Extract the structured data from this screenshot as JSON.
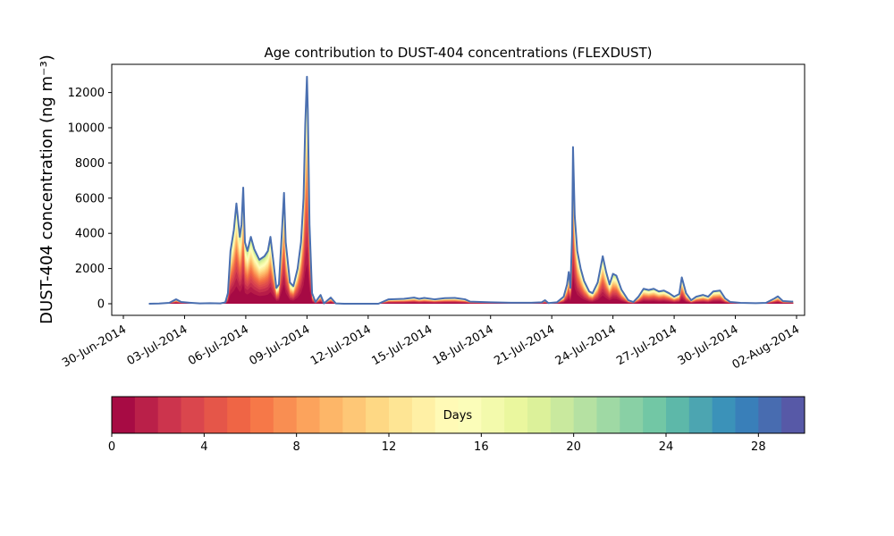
{
  "chart_data": {
    "type": "area",
    "title": "Age contribution to DUST-404 concentrations (FLEXDUST)",
    "ylabel": "DUST-404 concentration (ng m⁻³)",
    "xlabel": "",
    "ylim": [
      -700,
      13500
    ],
    "xlim": [
      "2014-06-30T00:00",
      "2014-08-02T00:00"
    ],
    "yticks": [
      0,
      2000,
      4000,
      6000,
      8000,
      10000,
      12000
    ],
    "ytick_labels": [
      "0",
      "2000",
      "4000",
      "6000",
      "8000",
      "10000",
      "12000"
    ],
    "xticks": [
      "2014-06-30",
      "2014-07-03",
      "2014-07-06",
      "2014-07-09",
      "2014-07-12",
      "2014-07-15",
      "2014-07-18",
      "2014-07-21",
      "2014-07-24",
      "2014-07-27",
      "2014-07-30",
      "2014-08-02"
    ],
    "xtick_labels": [
      "30-Jun-2014",
      "03-Jul-2014",
      "06-Jul-2014",
      "09-Jul-2014",
      "12-Jul-2014",
      "15-Jul-2014",
      "18-Jul-2014",
      "21-Jul-2014",
      "24-Jul-2014",
      "27-Jul-2014",
      "30-Jul-2014",
      "02-Aug-2014"
    ],
    "series": [
      {
        "values": [
          [
            "2014-07-01T06:00",
            0
          ],
          [
            "2014-07-01T18:00",
            10
          ],
          [
            "2014-07-02T06:00",
            50
          ],
          [
            "2014-07-02T14:00",
            250
          ],
          [
            "2014-07-02T20:00",
            100
          ],
          [
            "2014-07-03T06:00",
            60
          ],
          [
            "2014-07-03T18:00",
            20
          ],
          [
            "2014-07-04T06:00",
            30
          ],
          [
            "2014-07-04T18:00",
            20
          ],
          [
            "2014-07-05T00:00",
            80
          ],
          [
            "2014-07-05T03:00",
            600
          ],
          [
            "2014-07-05T06:00",
            3000
          ],
          [
            "2014-07-05T10:00",
            4200
          ],
          [
            "2014-07-05T13:00",
            5700
          ],
          [
            "2014-07-05T17:00",
            3800
          ],
          [
            "2014-07-05T19:00",
            4500
          ],
          [
            "2014-07-05T21:00",
            6600
          ],
          [
            "2014-07-05T23:00",
            3500
          ],
          [
            "2014-07-06T02:00",
            3000
          ],
          [
            "2014-07-06T06:00",
            3800
          ],
          [
            "2014-07-06T10:00",
            3100
          ],
          [
            "2014-07-06T16:00",
            2500
          ],
          [
            "2014-07-06T22:00",
            2700
          ],
          [
            "2014-07-07T02:00",
            3000
          ],
          [
            "2014-07-07T05:00",
            3800
          ],
          [
            "2014-07-07T08:00",
            2600
          ],
          [
            "2014-07-07T12:00",
            900
          ],
          [
            "2014-07-07T15:00",
            1100
          ],
          [
            "2014-07-07T19:00",
            4500
          ],
          [
            "2014-07-07T21:00",
            6300
          ],
          [
            "2014-07-07T23:00",
            3500
          ],
          [
            "2014-07-08T04:00",
            1200
          ],
          [
            "2014-07-08T08:00",
            1000
          ],
          [
            "2014-07-08T13:00",
            2000
          ],
          [
            "2014-07-08T17:00",
            3500
          ],
          [
            "2014-07-08T20:00",
            6000
          ],
          [
            "2014-07-08T22:00",
            10200
          ],
          [
            "2014-07-09T00:00",
            12900
          ],
          [
            "2014-07-09T01:00",
            11000
          ],
          [
            "2014-07-09T03:00",
            4500
          ],
          [
            "2014-07-09T06:00",
            600
          ],
          [
            "2014-07-09T10:00",
            100
          ],
          [
            "2014-07-09T16:00",
            500
          ],
          [
            "2014-07-09T20:00",
            20
          ],
          [
            "2014-07-10T04:00",
            350
          ],
          [
            "2014-07-10T10:00",
            20
          ],
          [
            "2014-07-10T20:00",
            0
          ],
          [
            "2014-07-11T12:00",
            0
          ],
          [
            "2014-07-12T12:00",
            0
          ],
          [
            "2014-07-13T00:00",
            250
          ],
          [
            "2014-07-13T18:00",
            280
          ],
          [
            "2014-07-14T06:00",
            350
          ],
          [
            "2014-07-14T12:00",
            280
          ],
          [
            "2014-07-14T18:00",
            330
          ],
          [
            "2014-07-15T06:00",
            250
          ],
          [
            "2014-07-15T18:00",
            320
          ],
          [
            "2014-07-16T06:00",
            330
          ],
          [
            "2014-07-16T18:00",
            250
          ],
          [
            "2014-07-17T00:00",
            120
          ],
          [
            "2014-07-18T00:00",
            80
          ],
          [
            "2014-07-19T00:00",
            60
          ],
          [
            "2014-07-20T00:00",
            60
          ],
          [
            "2014-07-20T12:00",
            80
          ],
          [
            "2014-07-20T16:00",
            200
          ],
          [
            "2014-07-20T20:00",
            40
          ],
          [
            "2014-07-21T06:00",
            80
          ],
          [
            "2014-07-21T14:00",
            400
          ],
          [
            "2014-07-21T18:00",
            1100
          ],
          [
            "2014-07-21T20:00",
            1800
          ],
          [
            "2014-07-21T22:00",
            900
          ],
          [
            "2014-07-22T00:00",
            4000
          ],
          [
            "2014-07-22T01:00",
            8900
          ],
          [
            "2014-07-22T03:00",
            5000
          ],
          [
            "2014-07-22T06:00",
            3000
          ],
          [
            "2014-07-22T10:00",
            2000
          ],
          [
            "2014-07-22T14:00",
            1300
          ],
          [
            "2014-07-22T20:00",
            700
          ],
          [
            "2014-07-23T00:00",
            600
          ],
          [
            "2014-07-23T06:00",
            1200
          ],
          [
            "2014-07-23T12:00",
            2700
          ],
          [
            "2014-07-23T16:00",
            1800
          ],
          [
            "2014-07-23T20:00",
            1100
          ],
          [
            "2014-07-24T00:00",
            1700
          ],
          [
            "2014-07-24T04:00",
            1600
          ],
          [
            "2014-07-24T10:00",
            800
          ],
          [
            "2014-07-24T18:00",
            200
          ],
          [
            "2014-07-25T00:00",
            100
          ],
          [
            "2014-07-25T06:00",
            400
          ],
          [
            "2014-07-25T12:00",
            850
          ],
          [
            "2014-07-25T18:00",
            780
          ],
          [
            "2014-07-26T00:00",
            850
          ],
          [
            "2014-07-26T06:00",
            700
          ],
          [
            "2014-07-26T12:00",
            750
          ],
          [
            "2014-07-26T18:00",
            600
          ],
          [
            "2014-07-27T00:00",
            400
          ],
          [
            "2014-07-27T06:00",
            550
          ],
          [
            "2014-07-27T09:00",
            1500
          ],
          [
            "2014-07-27T14:00",
            600
          ],
          [
            "2014-07-27T20:00",
            200
          ],
          [
            "2014-07-28T02:00",
            400
          ],
          [
            "2014-07-28T10:00",
            500
          ],
          [
            "2014-07-28T16:00",
            400
          ],
          [
            "2014-07-28T22:00",
            700
          ],
          [
            "2014-07-29T06:00",
            750
          ],
          [
            "2014-07-29T12:00",
            300
          ],
          [
            "2014-07-29T18:00",
            100
          ],
          [
            "2014-07-30T06:00",
            50
          ],
          [
            "2014-07-31T00:00",
            30
          ],
          [
            "2014-07-31T12:00",
            50
          ],
          [
            "2014-07-31T22:00",
            300
          ],
          [
            "2014-08-01T02:00",
            420
          ],
          [
            "2014-08-01T08:00",
            150
          ],
          [
            "2014-08-01T18:00",
            120
          ],
          [
            "2014-08-01T20:00",
            120
          ]
        ]
      }
    ],
    "colorbar": {
      "label": "Days",
      "min": 0,
      "max": 30,
      "bins": 30,
      "ticks": [
        0,
        4,
        8,
        12,
        16,
        20,
        24,
        28
      ],
      "tick_labels": [
        "0",
        "4",
        "8",
        "12",
        "16",
        "20",
        "24",
        "28"
      ],
      "colormap": "Spectral",
      "colors": [
        "#9e0142",
        "#d53e4f",
        "#f46d43",
        "#fdae61",
        "#fee08b",
        "#ffffbf",
        "#e6f598",
        "#abdda4",
        "#66c2a5",
        "#3288bd",
        "#5e4fa2"
      ]
    },
    "line_color": "#4a6fb0",
    "grid": false
  }
}
